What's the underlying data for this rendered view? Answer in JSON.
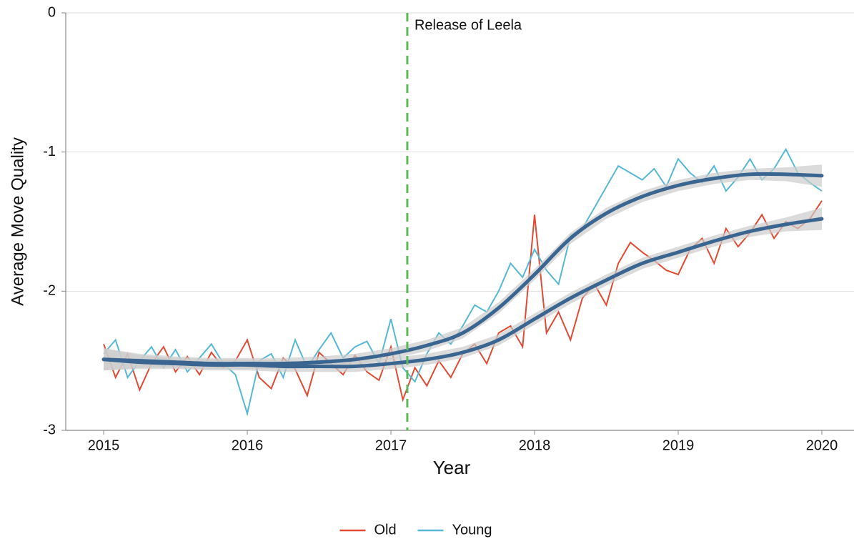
{
  "chart_data": {
    "type": "line",
    "xlabel": "Year",
    "ylabel": "Average Move Quality",
    "xlim": [
      2014.736,
      2020.224
    ],
    "ylim": [
      -3,
      0
    ],
    "xticks": [
      2015,
      2016,
      2017,
      2018,
      2019,
      2020
    ],
    "yticks": [
      -3,
      -2,
      -1,
      0
    ],
    "grid": true,
    "legend": "bottom",
    "annotation": {
      "x": 2017.114,
      "text": "Release of Leela",
      "color": "#5cb85c"
    },
    "x": [
      2015,
      2015.083,
      2015.167,
      2015.25,
      2015.333,
      2015.417,
      2015.5,
      2015.583,
      2015.667,
      2015.75,
      2015.833,
      2015.917,
      2016,
      2016.083,
      2016.167,
      2016.25,
      2016.333,
      2016.417,
      2016.5,
      2016.583,
      2016.667,
      2016.75,
      2016.833,
      2016.917,
      2017,
      2017.083,
      2017.167,
      2017.25,
      2017.333,
      2017.417,
      2017.5,
      2017.583,
      2017.667,
      2017.75,
      2017.833,
      2017.917,
      2018,
      2018.083,
      2018.167,
      2018.25,
      2018.333,
      2018.417,
      2018.5,
      2018.583,
      2018.667,
      2018.75,
      2018.833,
      2018.917,
      2019,
      2019.083,
      2019.167,
      2019.25,
      2019.333,
      2019.417,
      2019.5,
      2019.583,
      2019.667,
      2019.75,
      2019.833,
      2019.917,
      2020
    ],
    "series": [
      {
        "name": "Old",
        "color": "#e24a33",
        "values": [
          -2.38,
          -2.62,
          -2.45,
          -2.71,
          -2.52,
          -2.4,
          -2.58,
          -2.47,
          -2.6,
          -2.44,
          -2.55,
          -2.5,
          -2.35,
          -2.62,
          -2.7,
          -2.48,
          -2.56,
          -2.75,
          -2.44,
          -2.52,
          -2.6,
          -2.46,
          -2.58,
          -2.64,
          -2.4,
          -2.78,
          -2.55,
          -2.68,
          -2.5,
          -2.62,
          -2.45,
          -2.38,
          -2.52,
          -2.3,
          -2.25,
          -2.4,
          -1.45,
          -2.3,
          -2.15,
          -2.35,
          -2.05,
          -1.95,
          -2.1,
          -1.8,
          -1.65,
          -1.72,
          -1.78,
          -1.85,
          -1.88,
          -1.7,
          -1.62,
          -1.8,
          -1.55,
          -1.68,
          -1.58,
          -1.45,
          -1.62,
          -1.5,
          -1.55,
          -1.48,
          -1.35
        ]
      },
      {
        "name": "Young",
        "color": "#56b8d5",
        "values": [
          -2.45,
          -2.35,
          -2.62,
          -2.5,
          -2.4,
          -2.55,
          -2.42,
          -2.58,
          -2.48,
          -2.38,
          -2.52,
          -2.6,
          -2.88,
          -2.5,
          -2.45,
          -2.62,
          -2.35,
          -2.55,
          -2.42,
          -2.3,
          -2.48,
          -2.4,
          -2.36,
          -2.52,
          -2.2,
          -2.55,
          -2.65,
          -2.45,
          -2.3,
          -2.38,
          -2.25,
          -2.1,
          -2.15,
          -2.0,
          -1.8,
          -1.9,
          -1.7,
          -1.85,
          -1.95,
          -1.6,
          -1.55,
          -1.4,
          -1.25,
          -1.1,
          -1.15,
          -1.2,
          -1.12,
          -1.25,
          -1.05,
          -1.15,
          -1.22,
          -1.1,
          -1.28,
          -1.18,
          -1.05,
          -1.2,
          -1.12,
          -0.98,
          -1.15,
          -1.22,
          -1.28
        ]
      }
    ],
    "trends": [
      {
        "color": "#3a6591",
        "band_color": "#cccccc",
        "x": [
          2015,
          2015.25,
          2015.5,
          2015.75,
          2016,
          2016.25,
          2016.5,
          2016.75,
          2017,
          2017.25,
          2017.5,
          2017.75,
          2018,
          2018.25,
          2018.5,
          2018.75,
          2019,
          2019.25,
          2019.5,
          2019.75,
          2020
        ],
        "values": [
          -2.49,
          -2.51,
          -2.52,
          -2.53,
          -2.53,
          -2.54,
          -2.54,
          -2.54,
          -2.52,
          -2.49,
          -2.44,
          -2.35,
          -2.2,
          -2.05,
          -1.92,
          -1.8,
          -1.72,
          -1.64,
          -1.57,
          -1.52,
          -1.48
        ],
        "ci": [
          0.08,
          0.05,
          0.04,
          0.04,
          0.04,
          0.04,
          0.04,
          0.04,
          0.04,
          0.04,
          0.04,
          0.04,
          0.04,
          0.04,
          0.04,
          0.04,
          0.04,
          0.04,
          0.04,
          0.05,
          0.08
        ]
      },
      {
        "color": "#3a6591",
        "band_color": "#cccccc",
        "x": [
          2015,
          2015.25,
          2015.5,
          2015.75,
          2016,
          2016.25,
          2016.5,
          2016.75,
          2017,
          2017.25,
          2017.5,
          2017.75,
          2018,
          2018.25,
          2018.5,
          2018.75,
          2019,
          2019.25,
          2019.5,
          2019.75,
          2020
        ],
        "values": [
          -2.49,
          -2.5,
          -2.51,
          -2.52,
          -2.52,
          -2.52,
          -2.51,
          -2.49,
          -2.45,
          -2.39,
          -2.3,
          -2.12,
          -1.88,
          -1.62,
          -1.44,
          -1.32,
          -1.24,
          -1.19,
          -1.16,
          -1.16,
          -1.17
        ],
        "ci": [
          0.08,
          0.05,
          0.04,
          0.04,
          0.04,
          0.04,
          0.04,
          0.04,
          0.04,
          0.04,
          0.04,
          0.04,
          0.04,
          0.04,
          0.04,
          0.04,
          0.04,
          0.04,
          0.04,
          0.05,
          0.08
        ]
      }
    ]
  }
}
